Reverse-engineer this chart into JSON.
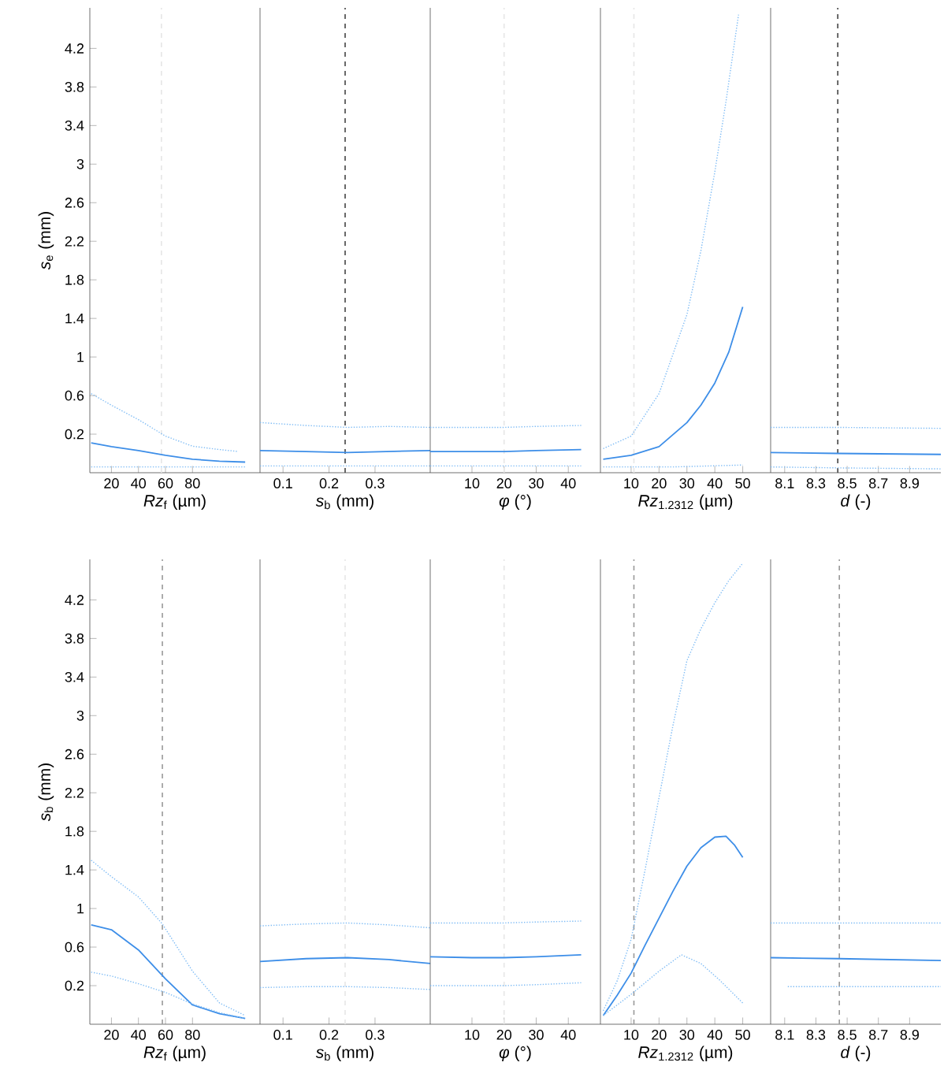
{
  "chart_data": [
    {
      "type": "line",
      "ylabel": "*s*$_{e}$ (mm)",
      "xlabel": "*Rz*$_{f}$ (µm)",
      "xlim": [
        4,
        130
      ],
      "xticks": [
        20,
        40,
        60,
        80
      ],
      "ylim": [
        -0.2,
        4.62
      ],
      "yticks": [
        0.2,
        0.6,
        1,
        1.4,
        1.8,
        2.2,
        2.6,
        3,
        3.4,
        3.8,
        4.2
      ],
      "series": [
        {
          "color": "#3d8ee8",
          "line_style": "solid",
          "x": [
            5,
            20,
            40,
            60,
            80,
            100,
            119
          ],
          "values": [
            0.11,
            0.07,
            0.03,
            -0.02,
            -0.06,
            -0.08,
            -0.09
          ]
        },
        {
          "color": "#7fbcf5",
          "line_style": "dotted",
          "x": [
            5,
            20,
            40,
            60,
            80,
            100,
            114
          ],
          "values": [
            0.62,
            0.5,
            0.35,
            0.18,
            0.075,
            0.04,
            0.02
          ]
        },
        {
          "color": "#7fbcf5",
          "line_style": "dotted",
          "x": [
            5,
            60,
            119
          ],
          "values": [
            -0.14,
            -0.14,
            -0.14
          ]
        }
      ],
      "ref_lines": [
        {
          "axis": "x",
          "value": 57,
          "color": "#e6e6e6",
          "line_style": "dashed"
        }
      ]
    },
    {
      "type": "line",
      "xlabel": "*s*$_{b}$ (mm)",
      "xlim": [
        0.05,
        0.42
      ],
      "xticks": [
        0.1,
        0.2,
        0.3
      ],
      "ylim": [
        -0.2,
        4.62
      ],
      "yticks": [
        0.2,
        0.6,
        1,
        1.4,
        1.8,
        2.2,
        2.6,
        3,
        3.4,
        3.8,
        4.2
      ],
      "tick_labels": "x",
      "series": [
        {
          "color": "#3d8ee8",
          "line_style": "solid",
          "x": [
            0.05,
            0.15,
            0.24,
            0.33,
            0.42
          ],
          "values": [
            0.03,
            0.02,
            0.01,
            0.02,
            0.03
          ]
        },
        {
          "color": "#7fbcf5",
          "line_style": "dotted",
          "x": [
            0.05,
            0.15,
            0.24,
            0.33,
            0.42
          ],
          "values": [
            0.32,
            0.29,
            0.27,
            0.28,
            0.27
          ]
        },
        {
          "color": "#7fbcf5",
          "line_style": "dotted",
          "x": [
            0.05,
            0.24,
            0.42
          ],
          "values": [
            -0.13,
            -0.13,
            -0.13
          ]
        }
      ],
      "ref_lines": [
        {
          "axis": "x",
          "value": 0.235,
          "color": "#444444",
          "line_style": "dashed"
        }
      ]
    },
    {
      "type": "line",
      "xlabel": "*φ* (°)",
      "xlim": [
        -3,
        50
      ],
      "xticks": [
        10,
        20,
        30,
        40
      ],
      "ylim": [
        -0.2,
        4.62
      ],
      "yticks": [
        0.2,
        0.6,
        1,
        1.4,
        1.8,
        2.2,
        2.6,
        3,
        3.4,
        3.8,
        4.2
      ],
      "tick_labels": "x",
      "series": [
        {
          "color": "#3d8ee8",
          "line_style": "solid",
          "x": [
            -3,
            10,
            20,
            30,
            44
          ],
          "values": [
            0.02,
            0.02,
            0.02,
            0.03,
            0.04
          ]
        },
        {
          "color": "#7fbcf5",
          "line_style": "dotted",
          "x": [
            -3,
            10,
            20,
            30,
            44
          ],
          "values": [
            0.27,
            0.27,
            0.27,
            0.28,
            0.29
          ]
        },
        {
          "color": "#7fbcf5",
          "line_style": "dotted",
          "x": [
            -3,
            20,
            44
          ],
          "values": [
            -0.13,
            -0.13,
            -0.13
          ]
        }
      ],
      "ref_lines": [
        {
          "axis": "x",
          "value": 20,
          "color": "#e6e6e6",
          "line_style": "dashed"
        }
      ]
    },
    {
      "type": "line",
      "xlabel": "*Rz*$_{1.2312}$ (µm)",
      "xlim": [
        -1,
        60
      ],
      "xticks": [
        10,
        20,
        30,
        40,
        50
      ],
      "ylim": [
        -0.2,
        4.62
      ],
      "yticks": [
        0.2,
        0.6,
        1,
        1.4,
        1.8,
        2.2,
        2.6,
        3,
        3.4,
        3.8,
        4.2
      ],
      "tick_labels": "x",
      "series": [
        {
          "color": "#3d8ee8",
          "line_style": "solid",
          "x": [
            0,
            10,
            20,
            30,
            35,
            40,
            45,
            50
          ],
          "values": [
            -0.06,
            -0.02,
            0.07,
            0.32,
            0.5,
            0.73,
            1.05,
            1.52
          ]
        },
        {
          "color": "#7fbcf5",
          "line_style": "dotted",
          "x": [
            0,
            10,
            20,
            30,
            35,
            40,
            44,
            48.5
          ],
          "values": [
            0.05,
            0.18,
            0.62,
            1.44,
            2.1,
            2.92,
            3.65,
            4.55
          ]
        },
        {
          "color": "#7fbcf5",
          "line_style": "dotted",
          "x": [
            0,
            25,
            50
          ],
          "values": [
            -0.14,
            -0.14,
            -0.12
          ]
        }
      ],
      "ref_lines": [
        {
          "axis": "x",
          "value": 11,
          "color": "#e6e6e6",
          "line_style": "dashed"
        }
      ]
    },
    {
      "type": "line",
      "xlabel": "*d* (-)",
      "xlim": [
        8.01,
        9.1
      ],
      "xticks": [
        8.1,
        8.3,
        8.5,
        8.7,
        8.9
      ],
      "ylim": [
        -0.2,
        4.62
      ],
      "yticks": [
        0.2,
        0.6,
        1,
        1.4,
        1.8,
        2.2,
        2.6,
        3,
        3.4,
        3.8,
        4.2
      ],
      "tick_labels": "x",
      "series": [
        {
          "color": "#3d8ee8",
          "line_style": "solid",
          "x": [
            8.01,
            8.44,
            9.1
          ],
          "values": [
            0.01,
            0.0,
            -0.01
          ]
        },
        {
          "color": "#7fbcf5",
          "line_style": "dotted",
          "x": [
            8.01,
            8.44,
            9.1
          ],
          "values": [
            0.27,
            0.27,
            0.26
          ]
        },
        {
          "color": "#7fbcf5",
          "line_style": "dotted",
          "x": [
            8.01,
            8.44,
            9.1
          ],
          "values": [
            -0.14,
            -0.15,
            -0.16
          ]
        }
      ],
      "ref_lines": [
        {
          "axis": "x",
          "value": 8.44,
          "color": "#444444",
          "line_style": "dashed"
        }
      ]
    },
    {
      "type": "line",
      "ylabel": "*s*$_{b}$ (mm)",
      "xlabel": "*Rz*$_{f}$ (µm)",
      "xlim": [
        4,
        130
      ],
      "xticks": [
        20,
        40,
        60,
        80
      ],
      "ylim": [
        -0.2,
        4.62
      ],
      "yticks": [
        0.2,
        0.6,
        1,
        1.4,
        1.8,
        2.2,
        2.6,
        3,
        3.4,
        3.8,
        4.2
      ],
      "series": [
        {
          "color": "#3d8ee8",
          "line_style": "solid",
          "x": [
            5,
            20,
            40,
            60,
            80,
            100,
            119
          ],
          "values": [
            0.83,
            0.78,
            0.57,
            0.27,
            0.0,
            -0.09,
            -0.14
          ]
        },
        {
          "color": "#7fbcf5",
          "line_style": "dotted",
          "x": [
            5,
            20,
            40,
            57.7,
            80,
            100,
            119
          ],
          "values": [
            1.5,
            1.33,
            1.12,
            0.84,
            0.35,
            0.02,
            -0.11
          ]
        },
        {
          "color": "#7fbcf5",
          "line_style": "dotted",
          "x": [
            5,
            20,
            40,
            60,
            80,
            100,
            119
          ],
          "values": [
            0.34,
            0.3,
            0.22,
            0.13,
            0.01,
            -0.08,
            -0.14
          ]
        }
      ],
      "ref_lines": [
        {
          "axis": "x",
          "value": 57.7,
          "color": "#999999",
          "line_style": "dashed"
        }
      ]
    },
    {
      "type": "line",
      "xlabel": "*s*$_{b}$ (mm)",
      "xlim": [
        0.05,
        0.42
      ],
      "xticks": [
        0.1,
        0.2,
        0.3
      ],
      "ylim": [
        -0.2,
        4.62
      ],
      "yticks": [
        0.2,
        0.6,
        1,
        1.4,
        1.8,
        2.2,
        2.6,
        3,
        3.4,
        3.8,
        4.2
      ],
      "tick_labels": "x",
      "series": [
        {
          "color": "#3d8ee8",
          "line_style": "solid",
          "x": [
            0.05,
            0.15,
            0.24,
            0.33,
            0.42
          ],
          "values": [
            0.45,
            0.48,
            0.49,
            0.47,
            0.43
          ]
        },
        {
          "color": "#7fbcf5",
          "line_style": "dotted",
          "x": [
            0.05,
            0.15,
            0.24,
            0.33,
            0.42
          ],
          "values": [
            0.82,
            0.84,
            0.85,
            0.83,
            0.8
          ]
        },
        {
          "color": "#7fbcf5",
          "line_style": "dotted",
          "x": [
            0.05,
            0.15,
            0.24,
            0.33,
            0.42
          ],
          "values": [
            0.18,
            0.19,
            0.19,
            0.18,
            0.16
          ]
        }
      ],
      "ref_lines": [
        {
          "axis": "x",
          "value": 0.235,
          "color": "#e6e6e6",
          "line_style": "dashed"
        }
      ]
    },
    {
      "type": "line",
      "xlabel": "*φ* (°)",
      "xlim": [
        -3,
        50
      ],
      "xticks": [
        10,
        20,
        30,
        40
      ],
      "ylim": [
        -0.2,
        4.62
      ],
      "yticks": [
        0.2,
        0.6,
        1,
        1.4,
        1.8,
        2.2,
        2.6,
        3,
        3.4,
        3.8,
        4.2
      ],
      "tick_labels": "x",
      "series": [
        {
          "color": "#3d8ee8",
          "line_style": "solid",
          "x": [
            -3,
            10,
            20,
            30,
            44
          ],
          "values": [
            0.5,
            0.49,
            0.49,
            0.5,
            0.52
          ]
        },
        {
          "color": "#7fbcf5",
          "line_style": "dotted",
          "x": [
            -3,
            10,
            20,
            30,
            44
          ],
          "values": [
            0.85,
            0.85,
            0.85,
            0.86,
            0.87
          ]
        },
        {
          "color": "#7fbcf5",
          "line_style": "dotted",
          "x": [
            -3,
            10,
            20,
            30,
            44
          ],
          "values": [
            0.2,
            0.2,
            0.2,
            0.21,
            0.23
          ]
        }
      ],
      "ref_lines": [
        {
          "axis": "x",
          "value": 20,
          "color": "#e6e6e6",
          "line_style": "dashed"
        }
      ]
    },
    {
      "type": "line",
      "xlabel": "*Rz*$_{1.2312}$ (µm)",
      "xlim": [
        -1,
        60
      ],
      "xticks": [
        10,
        20,
        30,
        40,
        50
      ],
      "ylim": [
        -0.2,
        4.62
      ],
      "yticks": [
        0.2,
        0.6,
        1,
        1.4,
        1.8,
        2.2,
        2.6,
        3,
        3.4,
        3.8,
        4.2
      ],
      "tick_labels": "x",
      "series": [
        {
          "color": "#3d8ee8",
          "line_style": "solid",
          "x": [
            0,
            5,
            10,
            15,
            20,
            25,
            30,
            35,
            40,
            44,
            47,
            50
          ],
          "values": [
            -0.11,
            0.1,
            0.33,
            0.62,
            0.9,
            1.18,
            1.44,
            1.63,
            1.74,
            1.75,
            1.66,
            1.53
          ]
        },
        {
          "color": "#7fbcf5",
          "line_style": "dotted",
          "x": [
            0,
            5,
            10,
            15,
            20,
            25,
            30,
            35,
            40,
            45,
            50
          ],
          "values": [
            -0.06,
            0.25,
            0.68,
            1.4,
            2.15,
            2.9,
            3.57,
            3.9,
            4.17,
            4.4,
            4.58
          ]
        },
        {
          "color": "#7fbcf5",
          "line_style": "dotted",
          "x": [
            0,
            10,
            20,
            28,
            35,
            42,
            50
          ],
          "values": [
            -0.11,
            0.11,
            0.35,
            0.52,
            0.43,
            0.25,
            0.02
          ]
        }
      ],
      "ref_lines": [
        {
          "axis": "x",
          "value": 11,
          "color": "#999999",
          "line_style": "dashed"
        }
      ]
    },
    {
      "type": "line",
      "xlabel": "*d* (-)",
      "xlim": [
        8.01,
        9.1
      ],
      "xticks": [
        8.1,
        8.3,
        8.5,
        8.7,
        8.9
      ],
      "ylim": [
        -0.2,
        4.62
      ],
      "yticks": [
        0.2,
        0.6,
        1,
        1.4,
        1.8,
        2.2,
        2.6,
        3,
        3.4,
        3.8,
        4.2
      ],
      "tick_labels": "x",
      "series": [
        {
          "color": "#3d8ee8",
          "line_style": "solid",
          "x": [
            8.01,
            8.45,
            9.1
          ],
          "values": [
            0.49,
            0.48,
            0.46
          ]
        },
        {
          "color": "#7fbcf5",
          "line_style": "dotted",
          "x": [
            8.01,
            8.45,
            9.1
          ],
          "values": [
            0.85,
            0.85,
            0.85
          ]
        },
        {
          "color": "#7fbcf5",
          "line_style": "dotted",
          "x": [
            8.12,
            8.45,
            9.1
          ],
          "values": [
            0.19,
            0.19,
            0.19
          ]
        }
      ],
      "ref_lines": [
        {
          "axis": "x",
          "value": 8.45,
          "color": "#999999",
          "line_style": "dashed"
        }
      ]
    }
  ]
}
